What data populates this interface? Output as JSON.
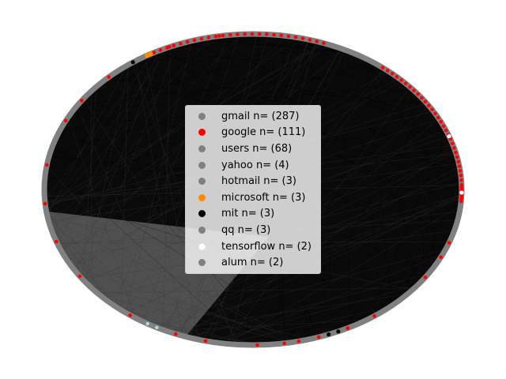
{
  "legend": {
    "entries": [
      {
        "label": "gmail n= (287)",
        "color": "#808080"
      },
      {
        "label": "google n= (111)",
        "color": "#ff0000"
      },
      {
        "label": "users n= (68)",
        "color": "#808080"
      },
      {
        "label": "yahoo n= (4)",
        "color": "#808080"
      },
      {
        "label": "hotmail n= (3)",
        "color": "#808080"
      },
      {
        "label": "microsoft n= (3)",
        "color": "#ff8c00"
      },
      {
        "label": "mit n= (3)",
        "color": "#000000"
      },
      {
        "label": "qq n= (3)",
        "color": "#808080"
      },
      {
        "label": "tensorflow n= (2)",
        "color": "#ffffff"
      },
      {
        "label": "alum n= (2)",
        "color": "#808080"
      }
    ]
  },
  "colors": {
    "edge": "#000000",
    "default_node": "#808080",
    "google_node": "#ff0000",
    "microsoft_node": "#ff8c00",
    "mit_node": "#000000",
    "tensorflow_node": "#ffffff",
    "misc_node": "#add8e6"
  }
}
